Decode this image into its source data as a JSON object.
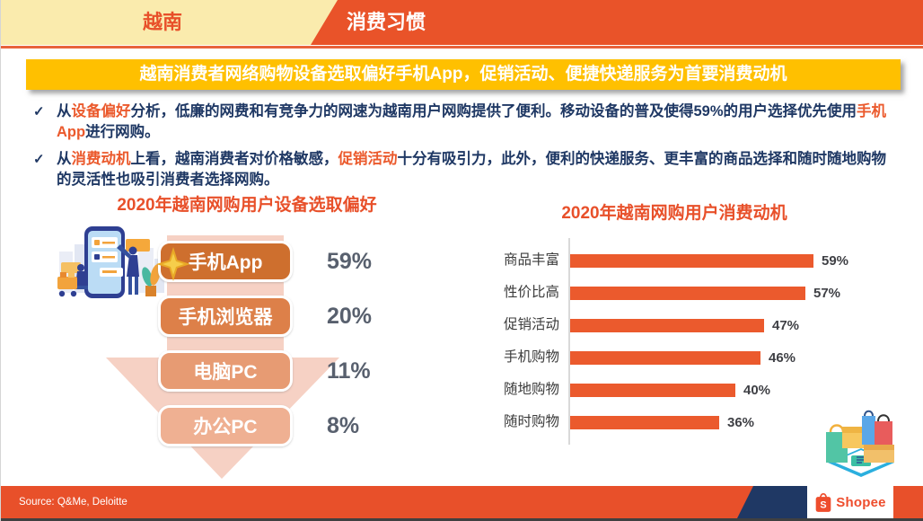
{
  "header": {
    "left_label": "越南",
    "right_label": "消费习惯"
  },
  "headline": "越南消费者网络购物设备选取偏好手机App，促销活动、便捷快递服务为首要消费动机",
  "bullets": [
    {
      "marker": "✓",
      "segments": [
        {
          "text": "从"
        },
        {
          "text": "设备偏好",
          "highlight": true
        },
        {
          "text": "分析，低廉的网费和有竞争力的网速为越南用户网购提供了便利。移动设备的普及使得59%的用户选择优先使用"
        },
        {
          "text": "手机App",
          "highlight": true
        },
        {
          "text": "进行网购。"
        }
      ]
    },
    {
      "marker": "✓",
      "segments": [
        {
          "text": "从"
        },
        {
          "text": "消费动机",
          "highlight": true
        },
        {
          "text": "上看，越南消费者对价格敏感，"
        },
        {
          "text": "促销活动",
          "highlight": true
        },
        {
          "text": "十分有吸引力，此外，便利的快递服务、更丰富的商品选择和随时随地购物的灵活性也吸引消费者选择网购。"
        }
      ]
    }
  ],
  "chart_data": [
    {
      "type": "bar",
      "subtype": "funnel-list",
      "title": "2020年越南网购用户设备选取偏\n好",
      "title_flat": "2020年越南网购用户设备选取偏好",
      "categories": [
        "手机App",
        "手机浏览器",
        "电脑PC",
        "办公PC"
      ],
      "values": [
        59,
        20,
        11,
        8
      ],
      "unit": "%",
      "bar_colors": [
        "#CE6F2E",
        "#DD8049",
        "#E79B73",
        "#EFB092"
      ],
      "value_color": "#58606E",
      "highlight_first_with_star": true,
      "legend": false
    },
    {
      "type": "bar",
      "orientation": "horizontal",
      "title": "2020年越南网购用户消费动机",
      "categories": [
        "商品丰富",
        "性价比高",
        "促销活动",
        "手机购物",
        "随地购物",
        "随时购物"
      ],
      "values": [
        59,
        57,
        47,
        46,
        40,
        36
      ],
      "unit": "%",
      "xlim": [
        0,
        65
      ],
      "bar_color": "#EB5A2D",
      "axis_color": "#D9D9D9",
      "grid": false,
      "legend": false
    }
  ],
  "footer": {
    "source": "Source: Q&Me, Deloitte",
    "brand_name": "Shopee"
  },
  "colors": {
    "accent_orange": "#E8502A",
    "header_cream": "#FAEBAD",
    "headline_gold": "#FFC000",
    "body_navy": "#1F3864",
    "highlight_orange": "#EB5A2D",
    "funnel_arrow_pink": "#F6D1C4",
    "bar_orange": "#EB5A2D",
    "footer_navy": "#1F3864",
    "shopee_orange": "#EE4D2D",
    "sparkle_gold": "#E9A926"
  },
  "icons": {
    "bullet_check": "check-icon",
    "funnel_star": "sparkle-icon",
    "brand_logo": "shopee-bag-logo-icon"
  }
}
